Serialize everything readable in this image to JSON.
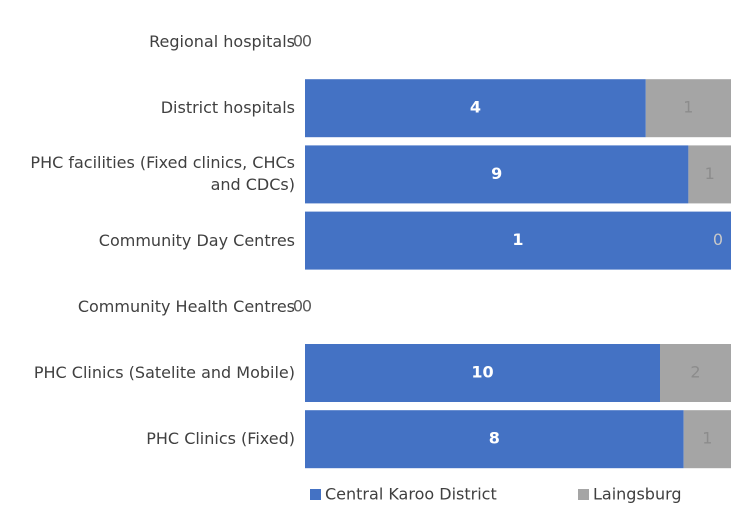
{
  "chart_data": {
    "type": "bar",
    "orientation": "horizontal",
    "stacking": "percent",
    "categories": [
      "Regional hospitals",
      "District hospitals",
      "PHC facilities (Fixed clinics, CHCs and CDCs)",
      "Community Day Centres",
      "Community Health Centres",
      "PHC Clinics (Satelite and Mobile)",
      "PHC Clinics (Fixed)"
    ],
    "series": [
      {
        "name": "Central Karoo District",
        "color": "#4472c4",
        "values": [
          0,
          4,
          9,
          1,
          0,
          10,
          8
        ]
      },
      {
        "name": "Laingsburg",
        "color": "#a5a5a5",
        "values": [
          0,
          1,
          1,
          0,
          0,
          2,
          1
        ]
      }
    ],
    "legend": "bottom"
  }
}
